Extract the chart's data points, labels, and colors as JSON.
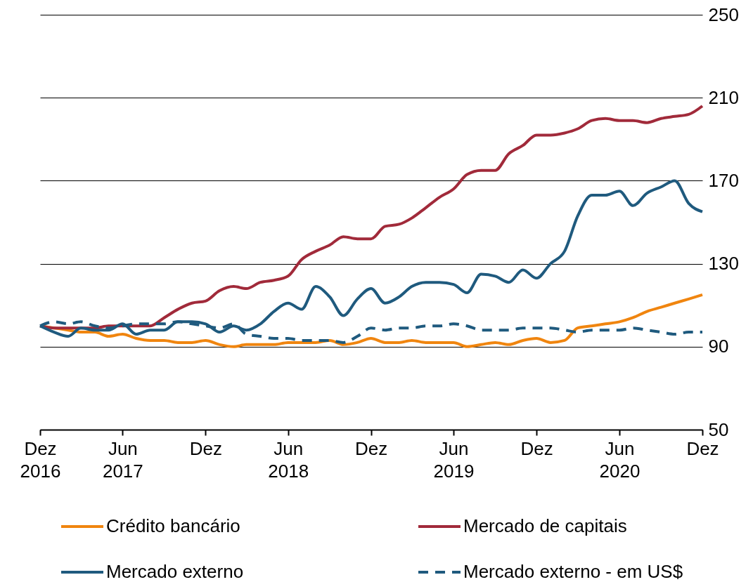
{
  "chart_data": {
    "type": "line",
    "x": [
      "2016-12",
      "2017-01",
      "2017-02",
      "2017-03",
      "2017-04",
      "2017-05",
      "2017-06",
      "2017-07",
      "2017-08",
      "2017-09",
      "2017-10",
      "2017-11",
      "2017-12",
      "2018-01",
      "2018-02",
      "2018-03",
      "2018-04",
      "2018-05",
      "2018-06",
      "2018-07",
      "2018-08",
      "2018-09",
      "2018-10",
      "2018-11",
      "2018-12",
      "2019-01",
      "2019-02",
      "2019-03",
      "2019-04",
      "2019-05",
      "2019-06",
      "2019-07",
      "2019-08",
      "2019-09",
      "2019-10",
      "2019-11",
      "2019-12",
      "2020-01",
      "2020-02",
      "2020-03",
      "2020-04",
      "2020-05",
      "2020-06",
      "2020-07",
      "2020-08",
      "2020-09",
      "2020-10",
      "2020-11",
      "2020-12"
    ],
    "series": [
      {
        "name": "Crédito bancário",
        "color": "#f0850f",
        "values": [
          100,
          99,
          98,
          97,
          97,
          95,
          96,
          94,
          93,
          93,
          92,
          92,
          93,
          91,
          90,
          91,
          91,
          91,
          92,
          92,
          92,
          93,
          91,
          92,
          94,
          92,
          92,
          93,
          92,
          92,
          92,
          90,
          91,
          92,
          91,
          93,
          94,
          92,
          93,
          99,
          100,
          101,
          102,
          104,
          107,
          109,
          111,
          113,
          115
        ]
      },
      {
        "name": "Mercado de capitais",
        "color": "#a12a3a",
        "values": [
          100,
          99,
          99,
          99,
          99,
          100,
          100,
          100,
          100,
          104,
          108,
          111,
          112,
          117,
          119,
          118,
          121,
          122,
          124,
          132,
          136,
          139,
          143,
          142,
          142,
          148,
          149,
          152,
          157,
          162,
          166,
          173,
          175,
          175,
          183,
          187,
          192,
          192,
          193,
          195,
          199,
          200,
          199,
          199,
          198,
          200,
          201,
          202,
          206
        ]
      },
      {
        "name": "Mercado externo",
        "color": "#1f5a7e",
        "values": [
          100,
          97,
          95,
          99,
          98,
          98,
          101,
          96,
          98,
          98,
          102,
          102,
          101,
          97,
          100,
          98,
          101,
          107,
          111,
          108,
          119,
          114,
          105,
          113,
          118,
          111,
          114,
          119,
          121,
          121,
          120,
          116,
          125,
          124,
          121,
          127,
          123,
          130,
          136,
          153,
          163,
          163,
          165,
          158,
          164,
          167,
          170,
          159,
          155
        ]
      },
      {
        "name": "Mercado externo - em US$",
        "color": "#1f5a7e",
        "line_style": "dashed",
        "values": [
          100,
          102,
          101,
          102,
          100,
          99,
          100,
          101,
          101,
          101,
          102,
          101,
          100,
          99,
          101,
          96,
          95,
          94,
          94,
          93,
          93,
          93,
          92,
          95,
          99,
          98,
          99,
          99,
          100,
          100,
          101,
          100,
          98,
          98,
          98,
          99,
          99,
          99,
          98,
          97,
          98,
          98,
          98,
          99,
          98,
          97,
          96,
          97,
          97
        ]
      }
    ],
    "ylim": [
      50,
      250
    ],
    "yticks": [
      50,
      90,
      130,
      170,
      210,
      250
    ],
    "xlim": [
      "2016-12",
      "2020-12"
    ],
    "xticks": [
      {
        "value": "2016-12",
        "label": "Dez\n2016"
      },
      {
        "value": "2017-06",
        "label": "Jun\n2017"
      },
      {
        "value": "2017-12",
        "label": "Dez"
      },
      {
        "value": "2018-06",
        "label": "Jun\n2018"
      },
      {
        "value": "2018-12",
        "label": "Dez"
      },
      {
        "value": "2019-06",
        "label": "Jun\n2019"
      },
      {
        "value": "2019-12",
        "label": "Dez"
      },
      {
        "value": "2020-06",
        "label": "Jun\n2020"
      },
      {
        "value": "2020-12",
        "label": "Dez"
      }
    ],
    "grid": "y",
    "legend": "bottom",
    "line_style": "solid"
  }
}
